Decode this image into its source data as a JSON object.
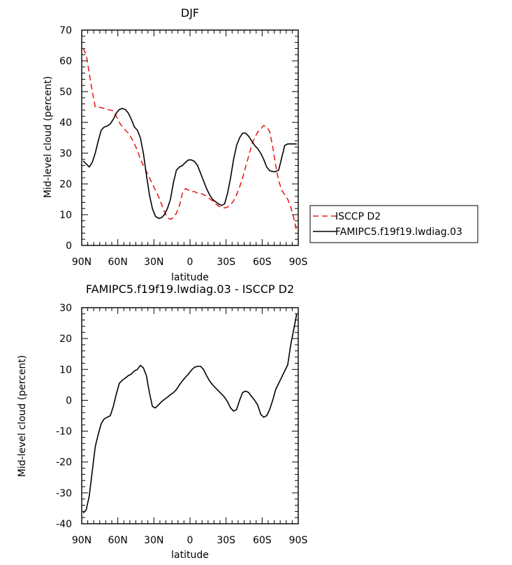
{
  "chart_data": [
    {
      "type": "line",
      "title": "DJF",
      "xlabel": "latitude",
      "ylabel": "Mid-level cloud (percent)",
      "xlim": [
        -90,
        90
      ],
      "ylim": [
        0,
        70
      ],
      "x_tick_values": [
        -90,
        -60,
        -30,
        0,
        30,
        60,
        90
      ],
      "x_tick_labels": [
        "90N",
        "60N",
        "30N",
        "0",
        "30S",
        "60S",
        "90S"
      ],
      "y_tick_values": [
        0,
        10,
        20,
        30,
        40,
        50,
        60,
        70
      ],
      "y_tick_labels": [
        "0",
        "10",
        "20",
        "30",
        "40",
        "50",
        "60",
        "70"
      ],
      "legend": {
        "placement": "right"
      },
      "series": [
        {
          "name": "ISCCP D2",
          "color": "#e8201c",
          "dash": "dashed",
          "x": [
            -88.75,
            -86.25,
            -83.75,
            -81.25,
            -78.75,
            -76.25,
            -73.75,
            -71.25,
            -68.75,
            -66.25,
            -63.75,
            -61.25,
            -58.75,
            -56.25,
            -53.75,
            -51.25,
            -48.75,
            -46.25,
            -43.75,
            -41.25,
            -38.75,
            -36.25,
            -33.75,
            -31.25,
            -28.75,
            -26.25,
            -23.75,
            -21.25,
            -18.75,
            -16.25,
            -13.75,
            -11.25,
            -8.75,
            -6.25,
            -3.75,
            -1.25,
            1.25,
            3.75,
            6.25,
            8.75,
            11.25,
            13.75,
            16.25,
            18.75,
            21.25,
            23.75,
            26.25,
            28.75,
            31.25,
            33.75,
            36.25,
            38.75,
            41.25,
            43.75,
            46.25,
            48.75,
            51.25,
            53.75,
            56.25,
            58.75,
            61.25,
            63.75,
            66.25,
            68.75,
            71.25,
            73.75,
            76.25,
            78.75,
            81.25,
            83.75,
            86.25,
            88.75
          ],
          "values": [
            64,
            62,
            56,
            50,
            45,
            45,
            44.8,
            44.5,
            44.2,
            44,
            43.8,
            42,
            40,
            38.5,
            37.5,
            36.5,
            35,
            33,
            31,
            28,
            26,
            24,
            22,
            20,
            18,
            16,
            13.5,
            11,
            9,
            8.5,
            9,
            10.5,
            13,
            17,
            18.5,
            18,
            17.5,
            17.5,
            17,
            17,
            16.5,
            16,
            15.2,
            14.5,
            13.5,
            12.8,
            12.3,
            12.2,
            12.5,
            13.2,
            14.5,
            16.5,
            19,
            22,
            25.5,
            29,
            32.5,
            35,
            36.8,
            37.8,
            39,
            38.5,
            37,
            32,
            26,
            21,
            18,
            16.5,
            15,
            12.5,
            9,
            4.5
          ]
        },
        {
          "name": "FAMIPC5.f19f19.lwdiag.03",
          "color": "#000000",
          "dash": "solid",
          "x": [
            -88.75,
            -86.25,
            -83.75,
            -81.25,
            -78.75,
            -76.25,
            -73.75,
            -71.25,
            -68.75,
            -66.25,
            -63.75,
            -61.25,
            -58.75,
            -56.25,
            -53.75,
            -51.25,
            -48.75,
            -46.25,
            -43.75,
            -41.25,
            -38.75,
            -36.25,
            -33.75,
            -31.25,
            -28.75,
            -26.25,
            -23.75,
            -21.25,
            -18.75,
            -16.25,
            -13.75,
            -11.25,
            -8.75,
            -6.25,
            -3.75,
            -1.25,
            1.25,
            3.75,
            6.25,
            8.75,
            11.25,
            13.75,
            16.25,
            18.75,
            21.25,
            23.75,
            26.25,
            28.75,
            31.25,
            33.75,
            36.25,
            38.75,
            41.25,
            43.75,
            46.25,
            48.75,
            51.25,
            53.75,
            56.25,
            58.75,
            61.25,
            63.75,
            66.25,
            68.75,
            71.25,
            73.75,
            76.25,
            78.75,
            81.25,
            83.75,
            86.25,
            88.75
          ],
          "values": [
            27.5,
            26.5,
            25.5,
            27,
            30,
            34,
            37.5,
            38.5,
            38.8,
            39.5,
            41,
            43,
            44.2,
            44.5,
            44.2,
            43,
            41,
            38.5,
            37.5,
            35,
            30,
            23,
            16.5,
            12,
            9.5,
            8.8,
            9,
            10,
            12,
            15,
            20.5,
            24.5,
            25.5,
            26,
            27,
            27.8,
            27.8,
            27.3,
            26,
            23.5,
            21,
            18.5,
            16.5,
            15,
            14.2,
            13.5,
            13,
            13.5,
            17,
            22,
            28,
            32.5,
            35,
            36.5,
            36.5,
            35.5,
            34,
            32.5,
            31.5,
            30,
            28,
            25.5,
            24.3,
            24,
            24,
            24.5,
            28.5,
            32.5,
            33,
            33,
            33,
            33
          ]
        }
      ]
    },
    {
      "type": "line",
      "title": "FAMIPC5.f19f19.lwdiag.03 - ISCCP D2",
      "xlabel": "latitude",
      "ylabel": "Mid-level cloud (percent)",
      "xlim": [
        -90,
        90
      ],
      "ylim": [
        -40,
        30
      ],
      "x_tick_values": [
        -90,
        -60,
        -30,
        0,
        30,
        60,
        90
      ],
      "x_tick_labels": [
        "90N",
        "60N",
        "30N",
        "0",
        "30S",
        "60S",
        "90S"
      ],
      "y_tick_values": [
        -40,
        -30,
        -20,
        -10,
        0,
        10,
        20,
        30
      ],
      "y_tick_labels": [
        "-40",
        "-30",
        "-20",
        "-10",
        "0",
        "10",
        "20",
        "30"
      ],
      "series": [
        {
          "color": "#000000",
          "dash": "solid",
          "x": [
            -88.75,
            -86.25,
            -83.75,
            -81.25,
            -78.75,
            -76.25,
            -73.75,
            -71.25,
            -68.75,
            -66.25,
            -63.75,
            -61.25,
            -58.75,
            -56.25,
            -53.75,
            -51.25,
            -48.75,
            -46.25,
            -43.75,
            -41.25,
            -38.75,
            -36.25,
            -33.75,
            -31.25,
            -28.75,
            -26.25,
            -23.75,
            -21.25,
            -18.75,
            -16.25,
            -13.75,
            -11.25,
            -8.75,
            -6.25,
            -3.75,
            -1.25,
            1.25,
            3.75,
            6.25,
            8.75,
            11.25,
            13.75,
            16.25,
            18.75,
            21.25,
            23.75,
            26.25,
            28.75,
            31.25,
            33.75,
            36.25,
            38.75,
            41.25,
            43.75,
            46.25,
            48.75,
            51.25,
            53.75,
            56.25,
            58.75,
            61.25,
            63.75,
            66.25,
            68.75,
            71.25,
            73.75,
            76.25,
            78.75,
            81.25,
            83.75,
            86.25,
            88.75
          ],
          "values": [
            -36.5,
            -35.5,
            -31,
            -23,
            -15,
            -11,
            -7.5,
            -6,
            -5.5,
            -5,
            -2,
            2,
            5.5,
            6.5,
            7.2,
            8,
            8.5,
            9.5,
            10,
            11.3,
            10.5,
            8,
            2.5,
            -2,
            -2.5,
            -1.5,
            -0.5,
            0.3,
            1,
            1.8,
            2.5,
            3.5,
            5,
            6.3,
            7.5,
            8.5,
            9.8,
            10.7,
            11,
            11,
            10,
            8,
            6.3,
            5,
            4,
            3,
            2,
            1,
            -0.5,
            -2.5,
            -3.5,
            -3,
            0,
            2.5,
            3,
            2.5,
            1.2,
            0,
            -1.5,
            -4.5,
            -5.5,
            -5,
            -3,
            0,
            3.5,
            5.5,
            7.5,
            9.5,
            11.5,
            18,
            23,
            28
          ]
        }
      ]
    }
  ]
}
